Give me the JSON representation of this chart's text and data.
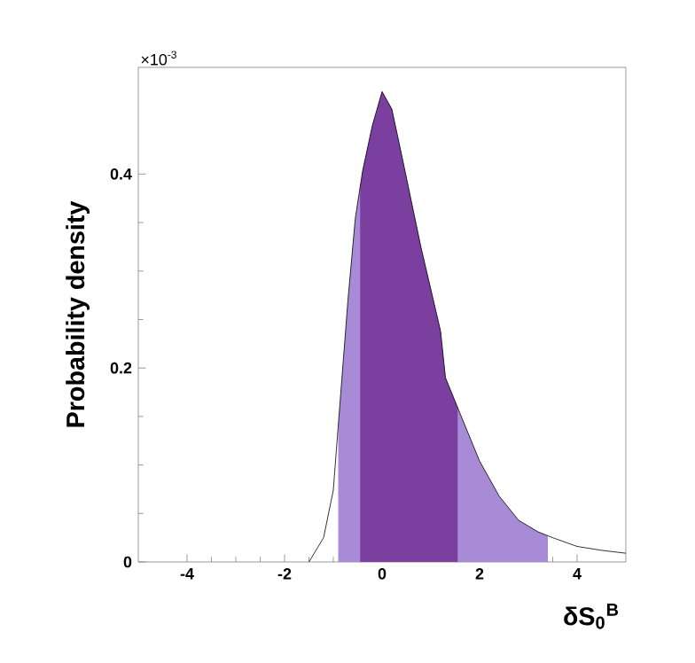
{
  "chart_data": {
    "type": "line",
    "xlabel": "δS$_{0}$$^{B}$",
    "ylabel": "Probability density",
    "annotations": [
      "×10$^{-3}$"
    ],
    "xlim": [
      -5,
      5
    ],
    "ylim": [
      0,
      0.51
    ],
    "xticks": [
      -4,
      -2,
      0,
      2,
      4
    ],
    "yticks": [
      0,
      0.2,
      0.4
    ],
    "series": [
      {
        "color": "#000000",
        "x": [
          -1.5,
          -1.2,
          -1.0,
          -0.9,
          -0.7,
          -0.55,
          -0.4,
          -0.2,
          0,
          0.2,
          0.4,
          0.6,
          0.8,
          1.0,
          1.2,
          1.3,
          1.6,
          2.0,
          2.4,
          2.8,
          3.2,
          3.5,
          4.0,
          4.5,
          5.0
        ],
        "values": [
          0,
          0.025,
          0.074,
          0.14,
          0.27,
          0.354,
          0.403,
          0.45,
          0.485,
          0.467,
          0.42,
          0.372,
          0.324,
          0.281,
          0.238,
          0.19,
          0.153,
          0.104,
          0.068,
          0.043,
          0.031,
          0.025,
          0.016,
          0.012,
          0.009
        ]
      }
    ],
    "bands": [
      {
        "axis": "x",
        "from": -0.9,
        "to": 3.4,
        "color": "#a78bd6"
      },
      {
        "axis": "x",
        "from": -0.45,
        "to": 1.55,
        "color": "#7b3fa0"
      }
    ]
  }
}
